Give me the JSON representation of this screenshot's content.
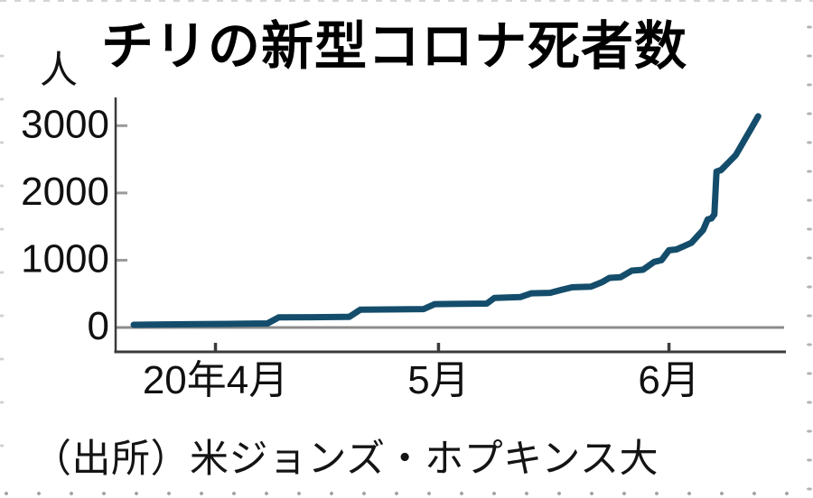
{
  "chart_data": {
    "type": "line",
    "title": "チリの新型コロナ死者数",
    "unit_label": "人",
    "source": "（出所）米ジョンズ・ホプキンス大",
    "grid": false,
    "legend": "none",
    "ylim": [
      0,
      3420
    ],
    "y_ticks": [
      {
        "label": "0",
        "value": 0
      },
      {
        "label": "1000",
        "value": 1000
      },
      {
        "label": "2000",
        "value": 2000
      },
      {
        "label": "3000",
        "value": 3000
      }
    ],
    "x_day0_approx_date": "2020-03-21",
    "x_ticks": [
      {
        "label": "20年4月",
        "day": 11
      },
      {
        "label": "5月",
        "day": 41
      },
      {
        "label": "6月",
        "day": 72
      }
    ],
    "series": [
      {
        "name": "チリの新型コロナ死者数（累計）",
        "color": "#144d6b",
        "points": [
          [
            0,
            40
          ],
          [
            4,
            45
          ],
          [
            9,
            50
          ],
          [
            14,
            55
          ],
          [
            18,
            60
          ],
          [
            19.5,
            150
          ],
          [
            24,
            153
          ],
          [
            29,
            158
          ],
          [
            30.5,
            265
          ],
          [
            34,
            268
          ],
          [
            39,
            273
          ],
          [
            40.5,
            348
          ],
          [
            44,
            352
          ],
          [
            47.5,
            356
          ],
          [
            48.5,
            438
          ],
          [
            52,
            452
          ],
          [
            53.5,
            508
          ],
          [
            56,
            515
          ],
          [
            57.5,
            558
          ],
          [
            59,
            598
          ],
          [
            61.5,
            608
          ],
          [
            63,
            675
          ],
          [
            64,
            738
          ],
          [
            65.5,
            748
          ],
          [
            67,
            845
          ],
          [
            68.5,
            858
          ],
          [
            70,
            975
          ],
          [
            71,
            1000
          ],
          [
            72,
            1148
          ],
          [
            73,
            1160
          ],
          [
            74,
            1208
          ],
          [
            75,
            1258
          ],
          [
            76,
            1378
          ],
          [
            76.6,
            1450
          ],
          [
            77.2,
            1608
          ],
          [
            77.7,
            1622
          ],
          [
            78.1,
            1680
          ],
          [
            78.4,
            2318
          ],
          [
            79,
            2340
          ],
          [
            80,
            2452
          ],
          [
            81,
            2565
          ],
          [
            82,
            2758
          ],
          [
            83,
            2948
          ],
          [
            84,
            3140
          ]
        ]
      }
    ],
    "colors": {
      "line": "#144d6b",
      "axis": "#3b3b3b",
      "zero_line": "#8c8c8c",
      "y_tick": "#9b9b9b",
      "text": "#101010"
    }
  }
}
